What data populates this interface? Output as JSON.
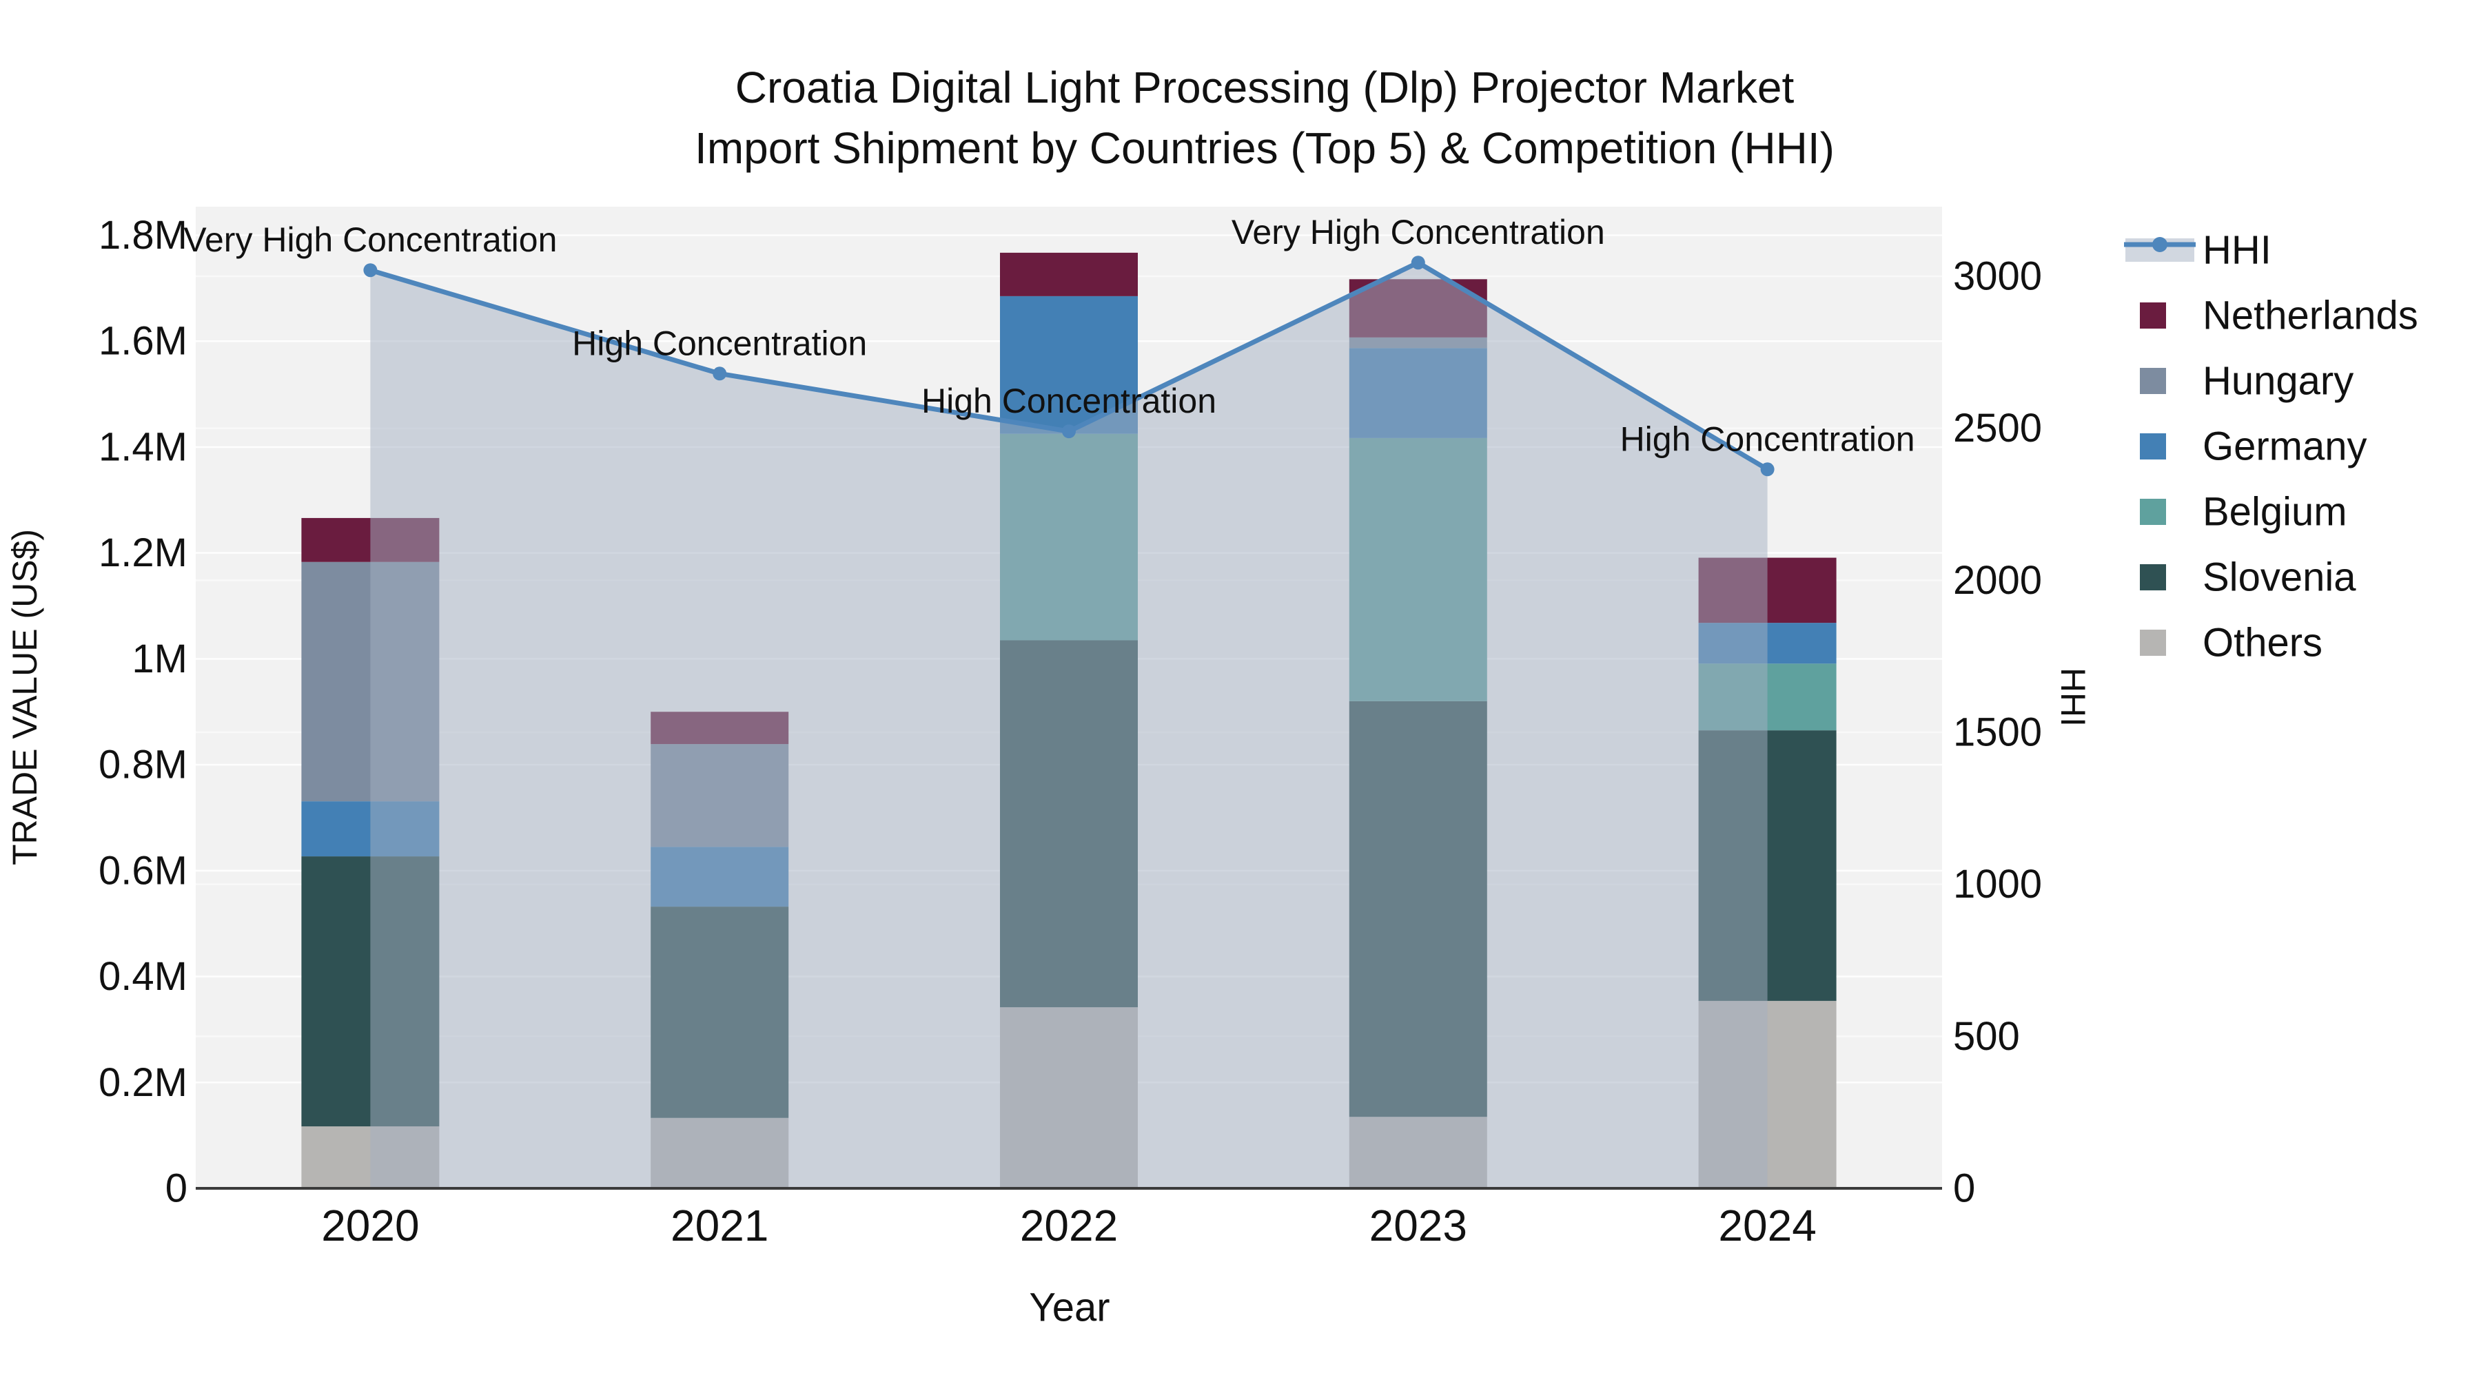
{
  "title": {
    "line1": "Croatia Digital Light Processing (Dlp) Projector Market",
    "line2": "Import Shipment by Countries (Top 5) & Competition (HHI)"
  },
  "axes": {
    "y_left": {
      "title": "TRADE VALUE (US$)",
      "tick_labels": [
        "0",
        "0.2M",
        "0.4M",
        "0.6M",
        "0.8M",
        "1M",
        "1.2M",
        "1.4M",
        "1.6M",
        "1.8M"
      ],
      "tick_step": 200000
    },
    "y_right": {
      "title": "HHI",
      "tick_labels": [
        "0",
        "500",
        "1000",
        "1500",
        "2000",
        "2500",
        "3000"
      ],
      "tick_step": 500
    },
    "x": {
      "title": "Year",
      "categories": [
        "2020",
        "2021",
        "2022",
        "2023",
        "2024"
      ]
    }
  },
  "legend": {
    "items": [
      {
        "label": "HHI",
        "kind": "line"
      },
      {
        "label": "Netherlands",
        "kind": "square"
      },
      {
        "label": "Hungary",
        "kind": "square"
      },
      {
        "label": "Germany",
        "kind": "square"
      },
      {
        "label": "Belgium",
        "kind": "square"
      },
      {
        "label": "Slovenia",
        "kind": "square"
      },
      {
        "label": "Others",
        "kind": "square"
      }
    ]
  },
  "colors": {
    "Netherlands": "#6A1C3F",
    "Hungary": "#7D8CA0",
    "Germany": "#4380B5",
    "Belgium": "#5FA19E",
    "Slovenia": "#2F5153",
    "Others": "#B6B5B3",
    "hhi_line": "#4E86BC",
    "hhi_fill": "rgba(163,175,194,0.5)",
    "plot_bg": "#f2f2f2",
    "grid_left": "#ffffff",
    "grid_right": "#fafafa",
    "axis_line": "#3b3b3b"
  },
  "chart_data": {
    "type": "bar+line",
    "title": "Croatia Digital Light Processing (Dlp) Projector Market Import Shipment by Countries (Top 5) & Competition (HHI)",
    "categories": [
      "2020",
      "2021",
      "2022",
      "2023",
      "2024"
    ],
    "bar_value_unit": "US$",
    "stack_order_bottom_to_top": [
      "Others",
      "Slovenia",
      "Belgium",
      "Germany",
      "Hungary",
      "Netherlands"
    ],
    "series": [
      {
        "name": "Others",
        "values": [
          117000,
          133000,
          342000,
          135000,
          354000
        ]
      },
      {
        "name": "Slovenia",
        "values": [
          510000,
          399000,
          693000,
          785000,
          511000
        ]
      },
      {
        "name": "Belgium",
        "values": [
          0,
          0,
          390000,
          497000,
          126000
        ]
      },
      {
        "name": "Germany",
        "values": [
          104000,
          113000,
          260000,
          170000,
          77000
        ]
      },
      {
        "name": "Hungary",
        "values": [
          452000,
          194000,
          0,
          20000,
          0
        ]
      },
      {
        "name": "Netherlands",
        "values": [
          83000,
          61000,
          82000,
          110000,
          123000
        ]
      }
    ],
    "bar_totals": [
      1266000,
      900000,
      1767000,
      1717000,
      1191000
    ],
    "hhi": {
      "name": "HHI",
      "values": [
        3020,
        2680,
        2490,
        3045,
        2365
      ],
      "annotations": [
        "Very High Concentration",
        "High Concentration",
        "High Concentration",
        "Very High Concentration",
        "High Concentration"
      ]
    },
    "ylim_left": [
      0,
      1854000
    ],
    "ylim_right": [
      0,
      3229
    ],
    "grid": true,
    "legend_position": "right"
  }
}
